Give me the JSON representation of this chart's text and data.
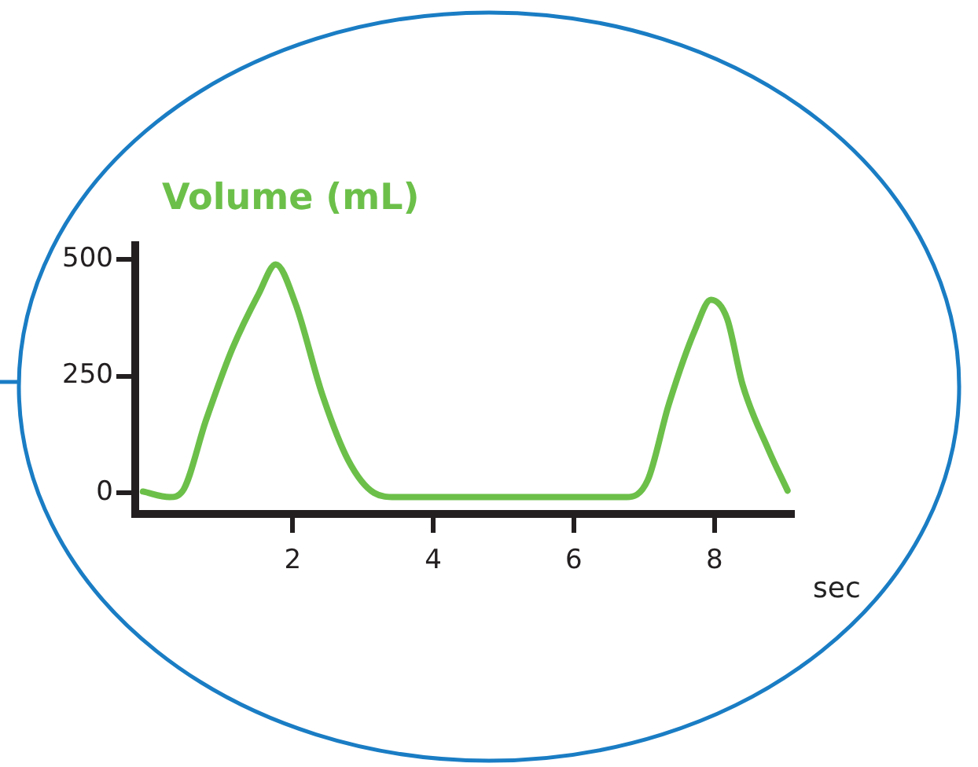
{
  "chart_data": {
    "type": "line",
    "title": "Volume (mL)",
    "xlabel": "sec",
    "x": [
      -0.13,
      0.25,
      0.43,
      0.77,
      1.14,
      1.52,
      1.76,
      2.04,
      2.42,
      2.79,
      3.16,
      3.46,
      6.75,
      7.05,
      7.35,
      7.73,
      7.95,
      8.18,
      8.4,
      8.77,
      9.04
    ],
    "series": [
      {
        "color": "#6cc04a",
        "values": [
          3,
          -9,
          3,
          157,
          308,
          427,
          489,
          405,
          211,
          70,
          0,
          -9,
          -9,
          27,
          189,
          351,
          413,
          373,
          232,
          92,
          5
        ]
      }
    ],
    "xlim": [
      -0.24,
      9.11
    ],
    "xticks": [
      2,
      4,
      6,
      8
    ],
    "ylim": [
      -45,
      530
    ],
    "yticks": [
      0,
      250,
      500
    ],
    "grid": false,
    "legend": false,
    "marker": "none",
    "line_style": "solid"
  }
}
